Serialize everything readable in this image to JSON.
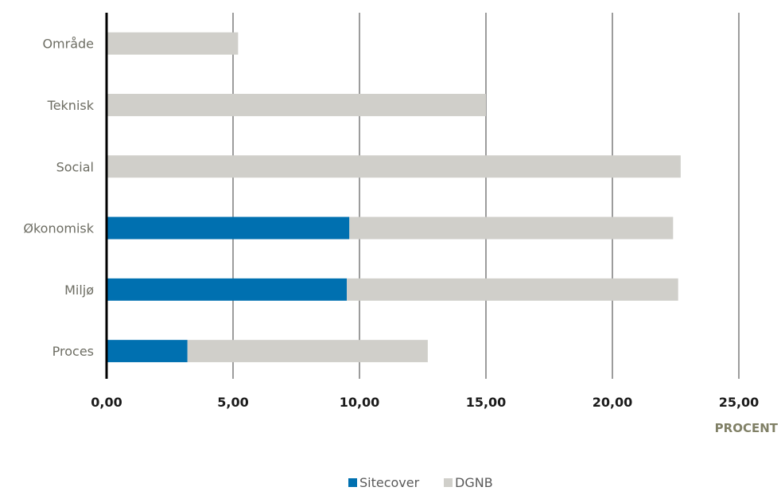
{
  "chart_data": {
    "type": "bar",
    "orientation": "horizontal",
    "stacked": true,
    "categories": [
      "Område",
      "Teknisk",
      "Social",
      "Økonomisk",
      "Miljø",
      "Proces"
    ],
    "series": [
      {
        "name": "Sitecover",
        "color": "#0070b0",
        "values": [
          0,
          0,
          0,
          9.6,
          9.5,
          3.2
        ]
      },
      {
        "name": "DGNB",
        "color": "#d0cfca",
        "values": [
          5.2,
          15.0,
          22.7,
          12.8,
          13.1,
          9.5
        ]
      }
    ],
    "xlabel": "PROCENT",
    "xlim": [
      0,
      25
    ],
    "xticks": [
      0,
      5,
      10,
      15,
      20,
      25
    ],
    "xtick_labels": [
      "0,00",
      "5,00",
      "10,00",
      "15,00",
      "20,00",
      "25,00"
    ],
    "grid": "vertical",
    "legend": "bottom-center"
  }
}
